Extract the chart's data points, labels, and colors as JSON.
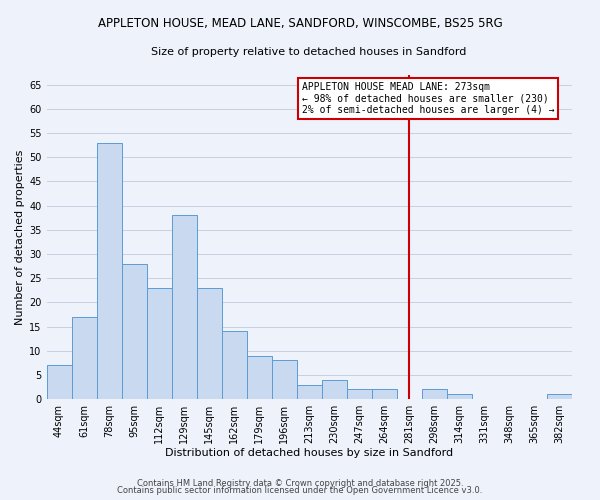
{
  "title1": "APPLETON HOUSE, MEAD LANE, SANDFORD, WINSCOMBE, BS25 5RG",
  "title2": "Size of property relative to detached houses in Sandford",
  "xlabel": "Distribution of detached houses by size in Sandford",
  "ylabel": "Number of detached properties",
  "bar_labels": [
    "44sqm",
    "61sqm",
    "78sqm",
    "95sqm",
    "112sqm",
    "129sqm",
    "145sqm",
    "162sqm",
    "179sqm",
    "196sqm",
    "213sqm",
    "230sqm",
    "247sqm",
    "264sqm",
    "281sqm",
    "298sqm",
    "314sqm",
    "331sqm",
    "348sqm",
    "365sqm",
    "382sqm"
  ],
  "bar_values": [
    7,
    17,
    53,
    28,
    23,
    38,
    23,
    14,
    9,
    8,
    3,
    4,
    2,
    2,
    0,
    2,
    1,
    0,
    0,
    0,
    1
  ],
  "bar_color": "#c8d9f0",
  "bar_edge_color": "#5b9bd5",
  "background_color": "#eef2fb",
  "grid_color": "#c8d0e0",
  "vline_x": 14.0,
  "vline_color": "#cc0000",
  "annotation_title": "APPLETON HOUSE MEAD LANE: 273sqm",
  "annotation_line1": "← 98% of detached houses are smaller (230)",
  "annotation_line2": "2% of semi-detached houses are larger (4) →",
  "annotation_box_color": "#ffffff",
  "annotation_box_edge_color": "#cc0000",
  "ylim": [
    0,
    67
  ],
  "yticks": [
    0,
    5,
    10,
    15,
    20,
    25,
    30,
    35,
    40,
    45,
    50,
    55,
    60,
    65
  ],
  "footer1": "Contains HM Land Registry data © Crown copyright and database right 2025.",
  "footer2": "Contains public sector information licensed under the Open Government Licence v3.0.",
  "title_fontsize": 8.5,
  "subtitle_fontsize": 8.0,
  "axis_label_fontsize": 8.0,
  "tick_fontsize": 7.0,
  "annotation_fontsize": 7.0,
  "footer_fontsize": 6.0
}
